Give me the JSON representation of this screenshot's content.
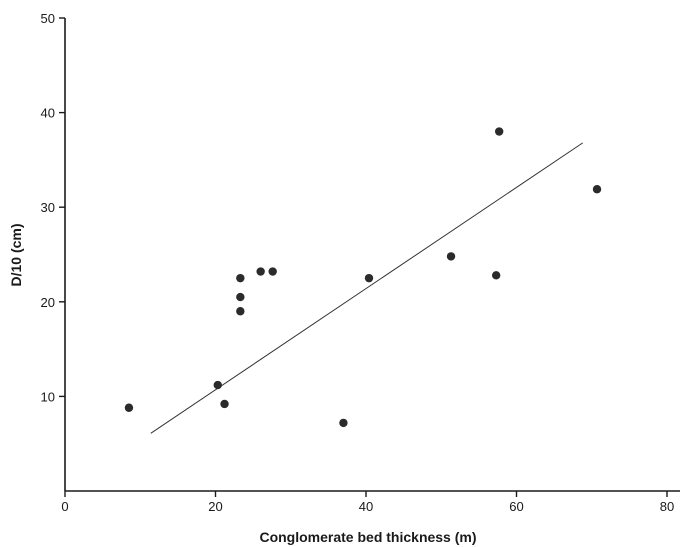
{
  "chart_data": {
    "type": "scatter",
    "title": "",
    "xlabel": "Conglomerate bed thickness (m)",
    "ylabel": "D/10 (cm)",
    "xlim": [
      0,
      80
    ],
    "ylim": [
      0,
      50
    ],
    "x_ticks": [
      "0",
      "20",
      "40",
      "60",
      "80"
    ],
    "y_ticks": [
      "10",
      "20",
      "30",
      "40",
      "50"
    ],
    "grid": false,
    "legend": "none",
    "point_color": "#2b2b2b",
    "points": [
      {
        "x": 8.5,
        "y": 8.8
      },
      {
        "x": 20.3,
        "y": 11.2
      },
      {
        "x": 21.2,
        "y": 9.2
      },
      {
        "x": 23.3,
        "y": 22.5
      },
      {
        "x": 23.3,
        "y": 20.5
      },
      {
        "x": 23.3,
        "y": 19.0
      },
      {
        "x": 26.0,
        "y": 23.2
      },
      {
        "x": 27.6,
        "y": 23.2
      },
      {
        "x": 37.0,
        "y": 7.2
      },
      {
        "x": 40.4,
        "y": 22.5
      },
      {
        "x": 51.3,
        "y": 24.8
      },
      {
        "x": 57.3,
        "y": 22.8
      },
      {
        "x": 57.7,
        "y": 38.0
      },
      {
        "x": 70.7,
        "y": 31.9
      }
    ],
    "trendline": {
      "x": [
        11.4,
        68.8
      ],
      "y": [
        6.1,
        36.8
      ]
    }
  }
}
